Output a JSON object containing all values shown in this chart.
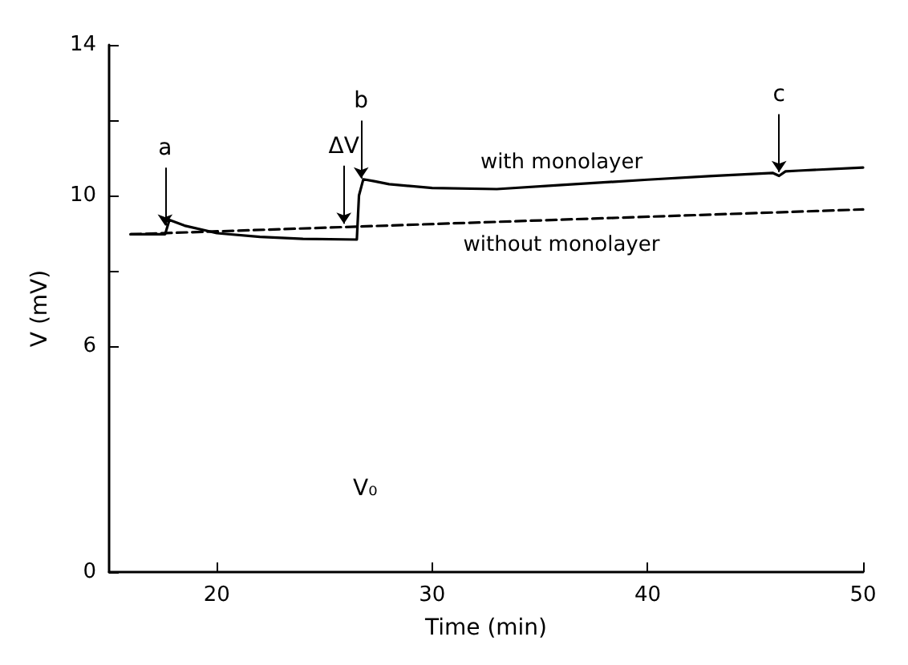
{
  "chart_data": {
    "type": "line",
    "xlabel": "Time (min)",
    "ylabel": "V (mV)",
    "xlim": [
      15,
      50
    ],
    "xticks": [
      20,
      30,
      40,
      50
    ],
    "ylim": [
      0,
      14
    ],
    "yticks": [
      0,
      6,
      {
        "value": 8,
        "label": null
      },
      10,
      {
        "value": 12,
        "label": null
      },
      14
    ],
    "grid": false,
    "legend": false,
    "marker": "none",
    "series": [
      {
        "name": "with monolayer",
        "color": "#000000",
        "line_style": "solid",
        "x": [
          16,
          17.6,
          17.8,
          18.5,
          20,
          22,
          24,
          26.5,
          26.6,
          26.8,
          27.3,
          28,
          30,
          33,
          36,
          40,
          43,
          45.8,
          46.1,
          46.4,
          47,
          50
        ],
        "values": [
          8.97,
          8.97,
          9.35,
          9.2,
          9.0,
          8.9,
          8.85,
          8.83,
          10.0,
          10.43,
          10.38,
          10.3,
          10.2,
          10.17,
          10.28,
          10.42,
          10.52,
          10.6,
          10.52,
          10.64,
          10.66,
          10.74
        ]
      },
      {
        "name": "without monolayer",
        "color": "#000000",
        "line_style": "dashed",
        "x": [
          16,
          50
        ],
        "values": [
          8.97,
          9.63
        ]
      }
    ],
    "annotations": [
      {
        "text": "a",
        "x": 17.6,
        "y": 9.2
      },
      {
        "text": "b",
        "x": 26.7,
        "y": 10.45
      },
      {
        "text": "c",
        "x": 46.1,
        "y": 10.62
      },
      {
        "text": "ΔV",
        "x": 25.9,
        "y": 9.25
      },
      "V₀"
    ]
  }
}
